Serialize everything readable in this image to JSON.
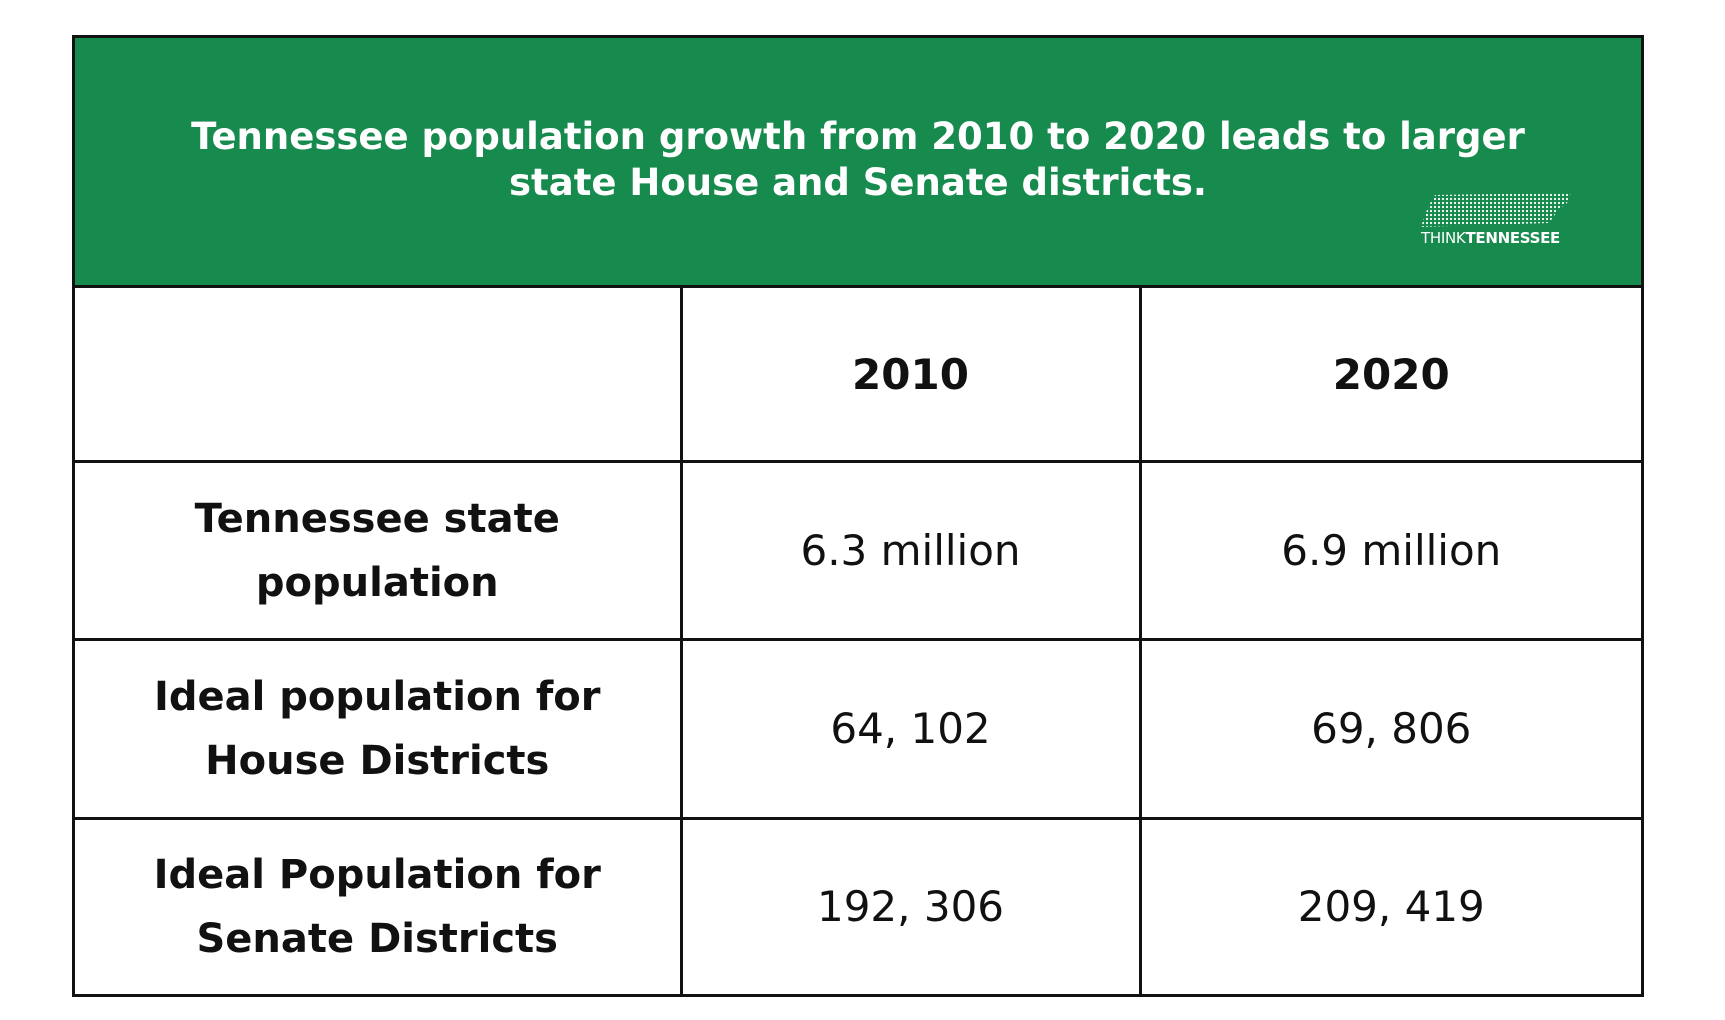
{
  "header": {
    "title": "Tennessee population growth from 2010 to 2020 leads to larger state House and Senate districts.",
    "logo": {
      "light": "THINK",
      "bold": "TENNESSEE"
    }
  },
  "table": {
    "columns": [
      "2010",
      "2020"
    ],
    "rows": [
      [
        "Tennessee state population",
        "6.3 million",
        "6.9 million"
      ],
      [
        "Ideal population for House Districts",
        "64, 102",
        "69, 806"
      ],
      [
        "Ideal Population for Senate Districts",
        "192, 306",
        "209, 419"
      ]
    ]
  }
}
